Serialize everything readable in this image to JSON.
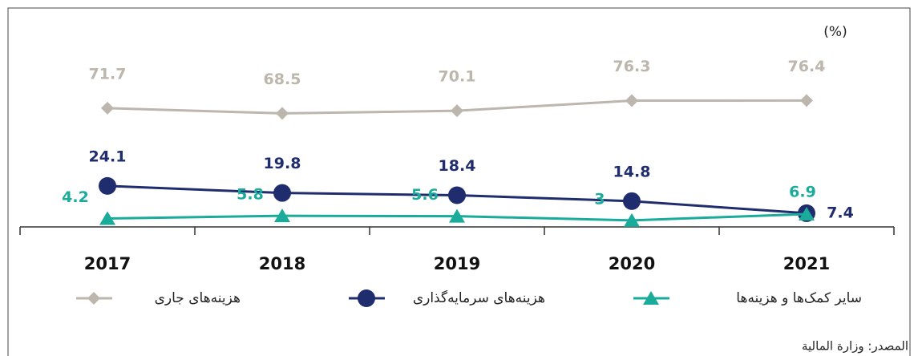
{
  "chart_data": {
    "type": "line",
    "unit": "(%)",
    "source": "المصدر: وزارة المالية",
    "categories": [
      "2017",
      "2018",
      "2019",
      "2020",
      "2021"
    ],
    "ylim": [
      0,
      80
    ],
    "series": [
      {
        "name": "هزینه‌های جاری",
        "color": "#bdb6ad",
        "marker": "diamond",
        "values": [
          71.7,
          68.5,
          70.1,
          76.3,
          76.4
        ]
      },
      {
        "name": "هزینه‌های سرمایه‌گذاری",
        "color": "#1f2c6e",
        "marker": "circle",
        "values": [
          24.1,
          19.8,
          18.4,
          14.8,
          7.4
        ]
      },
      {
        "name": "سایر کمک‌ها و هزینه‌ها",
        "color": "#1aab9b",
        "marker": "triangle",
        "values": [
          4.2,
          5.8,
          5.6,
          3.0,
          6.9
        ]
      }
    ]
  }
}
